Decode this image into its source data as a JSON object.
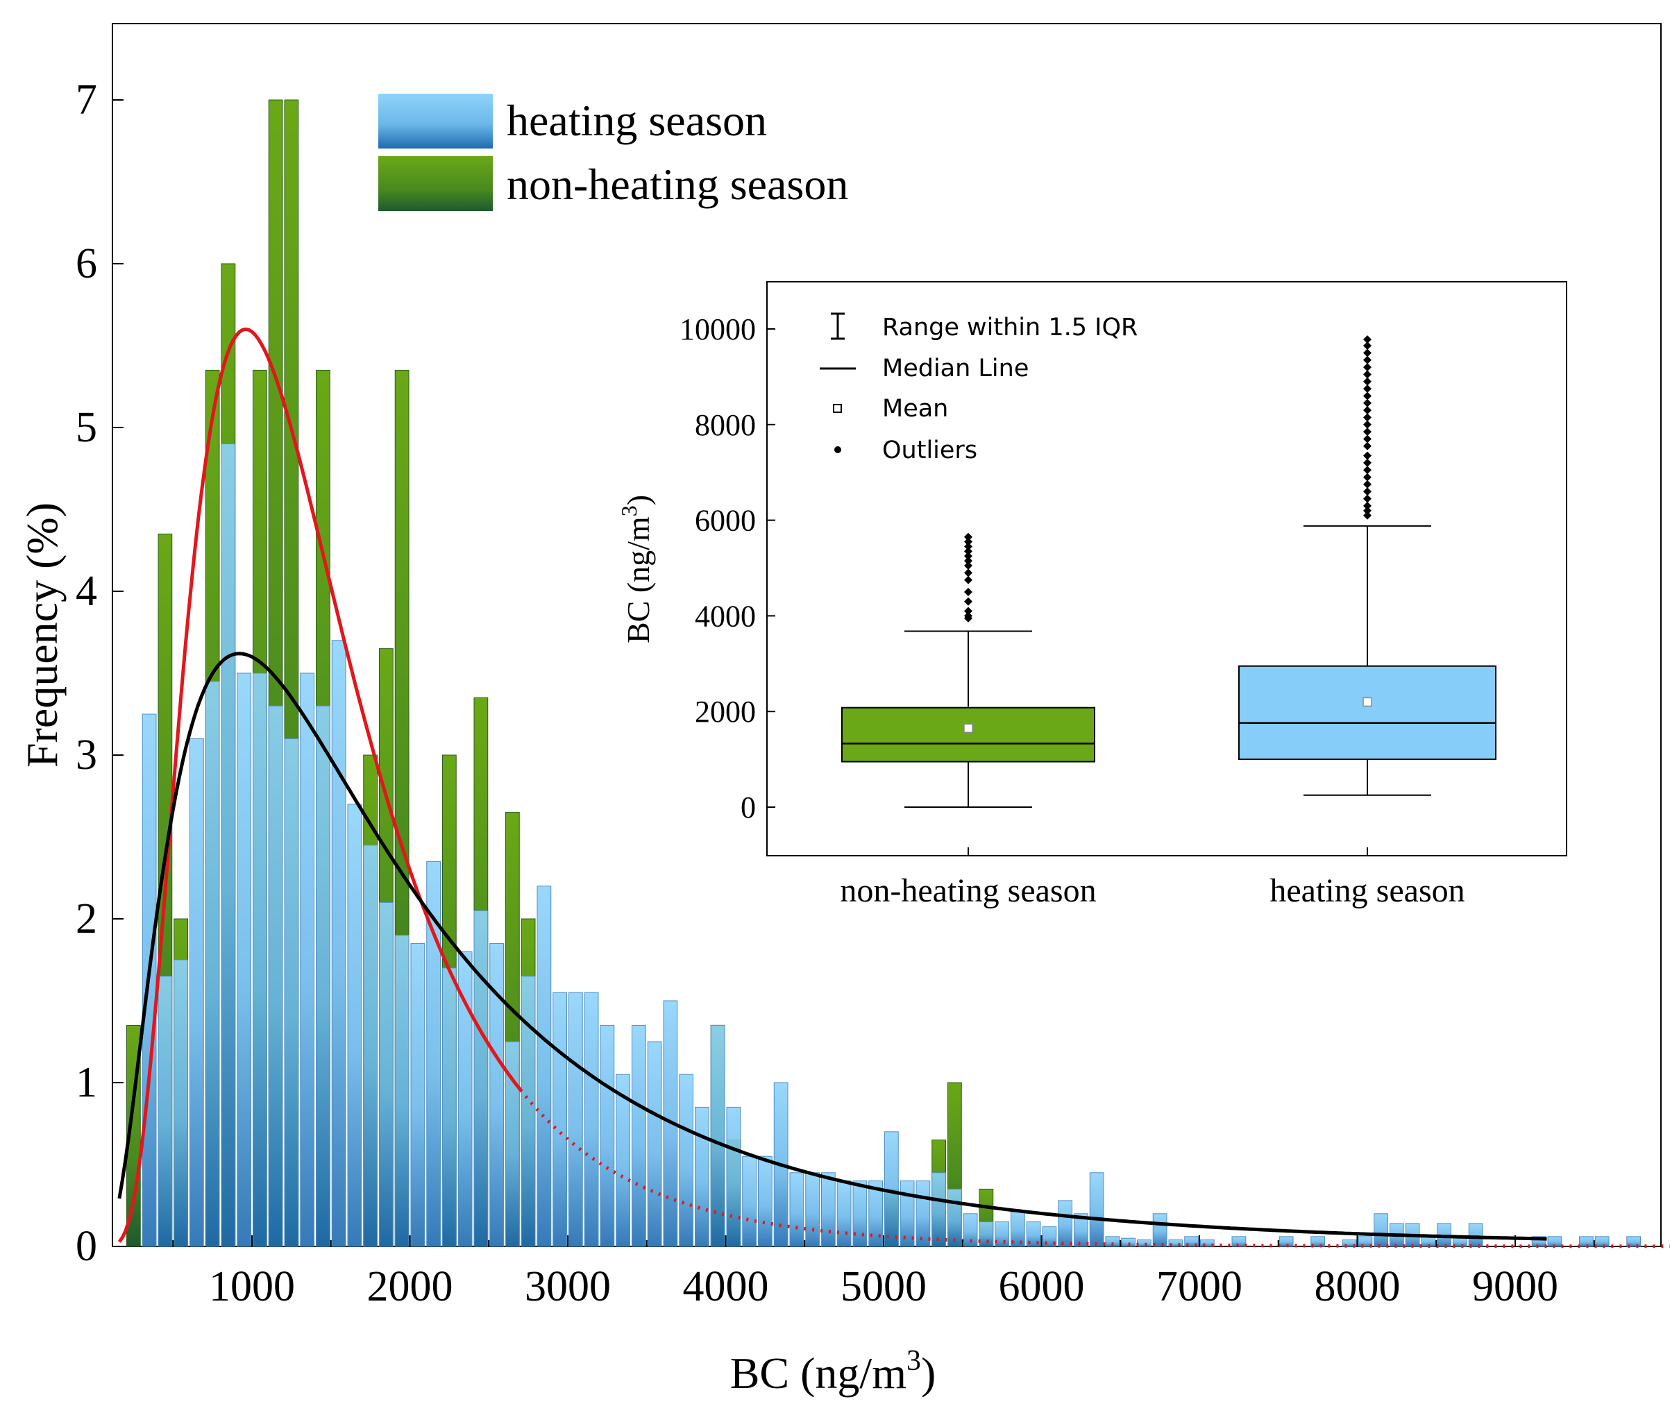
{
  "chart_data": [
    {
      "type": "bar",
      "subtype": "overlaid-histogram-with-fit-curves",
      "xlabel": "BC (ng/m",
      "xlabel_sup": "3",
      "xlabel_close": ")",
      "ylabel": "Frequency (%)",
      "xlim": [
        150,
        10000
      ],
      "ylim": [
        0,
        7.4
      ],
      "xticks": [
        1000,
        2000,
        3000,
        4000,
        5000,
        6000,
        7000,
        8000,
        9000
      ],
      "yticks": [
        0,
        1,
        2,
        3,
        4,
        5,
        6,
        7
      ],
      "bin_width": 100,
      "legend_position": "top-center",
      "series": [
        {
          "name": "heating season",
          "color_top": "#8fd3fb",
          "color_bottom": "#1f6bb0",
          "bin_starts": [
            300,
            400,
            500,
            600,
            700,
            800,
            900,
            1000,
            1100,
            1200,
            1300,
            1400,
            1500,
            1600,
            1700,
            1800,
            1900,
            2000,
            2100,
            2200,
            2300,
            2400,
            2500,
            2600,
            2700,
            2800,
            2900,
            3000,
            3100,
            3200,
            3300,
            3400,
            3500,
            3600,
            3700,
            3800,
            3900,
            4000,
            4100,
            4200,
            4300,
            4400,
            4500,
            4600,
            4700,
            4800,
            4900,
            5000,
            5100,
            5200,
            5300,
            5400,
            5500,
            5600,
            5700,
            5800,
            5900,
            6000,
            6100,
            6200,
            6300,
            6400,
            6500,
            6600,
            6700,
            6800,
            6900,
            7000,
            7200,
            7500,
            7700,
            7900,
            8000,
            8100,
            8200,
            8300,
            8400,
            8500,
            8600,
            8700,
            9100,
            9200,
            9400,
            9500,
            9700
          ],
          "values": [
            3.25,
            1.65,
            1.75,
            3.1,
            3.45,
            4.9,
            3.5,
            3.5,
            3.3,
            3.1,
            3.5,
            3.3,
            3.7,
            2.7,
            2.45,
            2.1,
            1.9,
            1.85,
            2.35,
            1.7,
            1.8,
            2.05,
            1.85,
            1.25,
            1.65,
            2.2,
            1.55,
            1.55,
            1.55,
            1.35,
            1.05,
            1.35,
            1.25,
            1.5,
            1.05,
            0.85,
            1.35,
            0.85,
            0.55,
            0.55,
            1.0,
            0.45,
            0.45,
            0.45,
            0.4,
            0.4,
            0.4,
            0.7,
            0.4,
            0.4,
            0.45,
            0.35,
            0.2,
            0.15,
            0.15,
            0.22,
            0.15,
            0.12,
            0.28,
            0.2,
            0.45,
            0.06,
            0.05,
            0.04,
            0.2,
            0.04,
            0.06,
            0.04,
            0.06,
            0.06,
            0.06,
            0.04,
            0.06,
            0.2,
            0.14,
            0.14,
            0.06,
            0.14,
            0.06,
            0.14,
            0.06,
            0.06,
            0.06,
            0.06,
            0.06
          ]
        },
        {
          "name": "non-heating season",
          "color_top": "#6aa817",
          "color_bottom": "#1e5a2e",
          "bin_starts": [
            200,
            400,
            500,
            700,
            800,
            1000,
            1100,
            1200,
            1400,
            1700,
            1800,
            1900,
            2200,
            2400,
            2600,
            2700,
            3900,
            4000,
            5000,
            5300,
            5400,
            5600
          ],
          "values": [
            1.35,
            4.35,
            2.0,
            5.35,
            6.0,
            5.35,
            7.0,
            7.0,
            5.35,
            3.0,
            3.65,
            5.35,
            3.0,
            3.35,
            2.65,
            2.0,
            1.35,
            0.65,
            0.35,
            0.65,
            1.0,
            0.35
          ]
        }
      ],
      "fit_curves": [
        {
          "name": "non-heating fit",
          "distribution": "lognormal",
          "peak_x": 960,
          "peak_y": 5.6,
          "color": "#e3161b",
          "dashed_after_x": 2700
        },
        {
          "name": "heating fit",
          "distribution": "lognormal",
          "peak_x": 920,
          "peak_y": 3.62,
          "color": "#000000"
        }
      ]
    },
    {
      "type": "boxplot",
      "ylabel": "BC (ng/m",
      "ylabel_sup": "3",
      "ylabel_close": ")",
      "ylim": [
        -1000,
        11000
      ],
      "yticks": [
        0,
        2000,
        4000,
        6000,
        8000,
        10000
      ],
      "categories": [
        "non-heating season",
        "heating season"
      ],
      "legend_items": [
        "Range within 1.5 IQR",
        "Median Line",
        "Mean",
        "Outliers"
      ],
      "boxes": [
        {
          "name": "non-heating season",
          "whisker_low": 0,
          "q1": 950,
          "median": 1330,
          "q3": 2080,
          "whisker_high": 3680,
          "mean": 1650,
          "color": "#6aa817",
          "outliers": [
            3950,
            4000,
            4100,
            4300,
            4500,
            4750,
            4900,
            5050,
            5150,
            5250,
            5350,
            5450,
            5550,
            5650
          ]
        },
        {
          "name": "heating season",
          "whisker_low": 250,
          "q1": 1000,
          "median": 1760,
          "q3": 2950,
          "whisker_high": 5880,
          "mean": 2200,
          "color": "#86cdfa",
          "outliers": [
            6100,
            6200,
            6300,
            6450,
            6600,
            6750,
            6900,
            7050,
            7200,
            7350,
            7550,
            7700,
            7850,
            8000,
            8150,
            8300,
            8450,
            8600,
            8750,
            8900,
            9050,
            9200,
            9350,
            9500,
            9650,
            9780
          ]
        }
      ]
    }
  ]
}
